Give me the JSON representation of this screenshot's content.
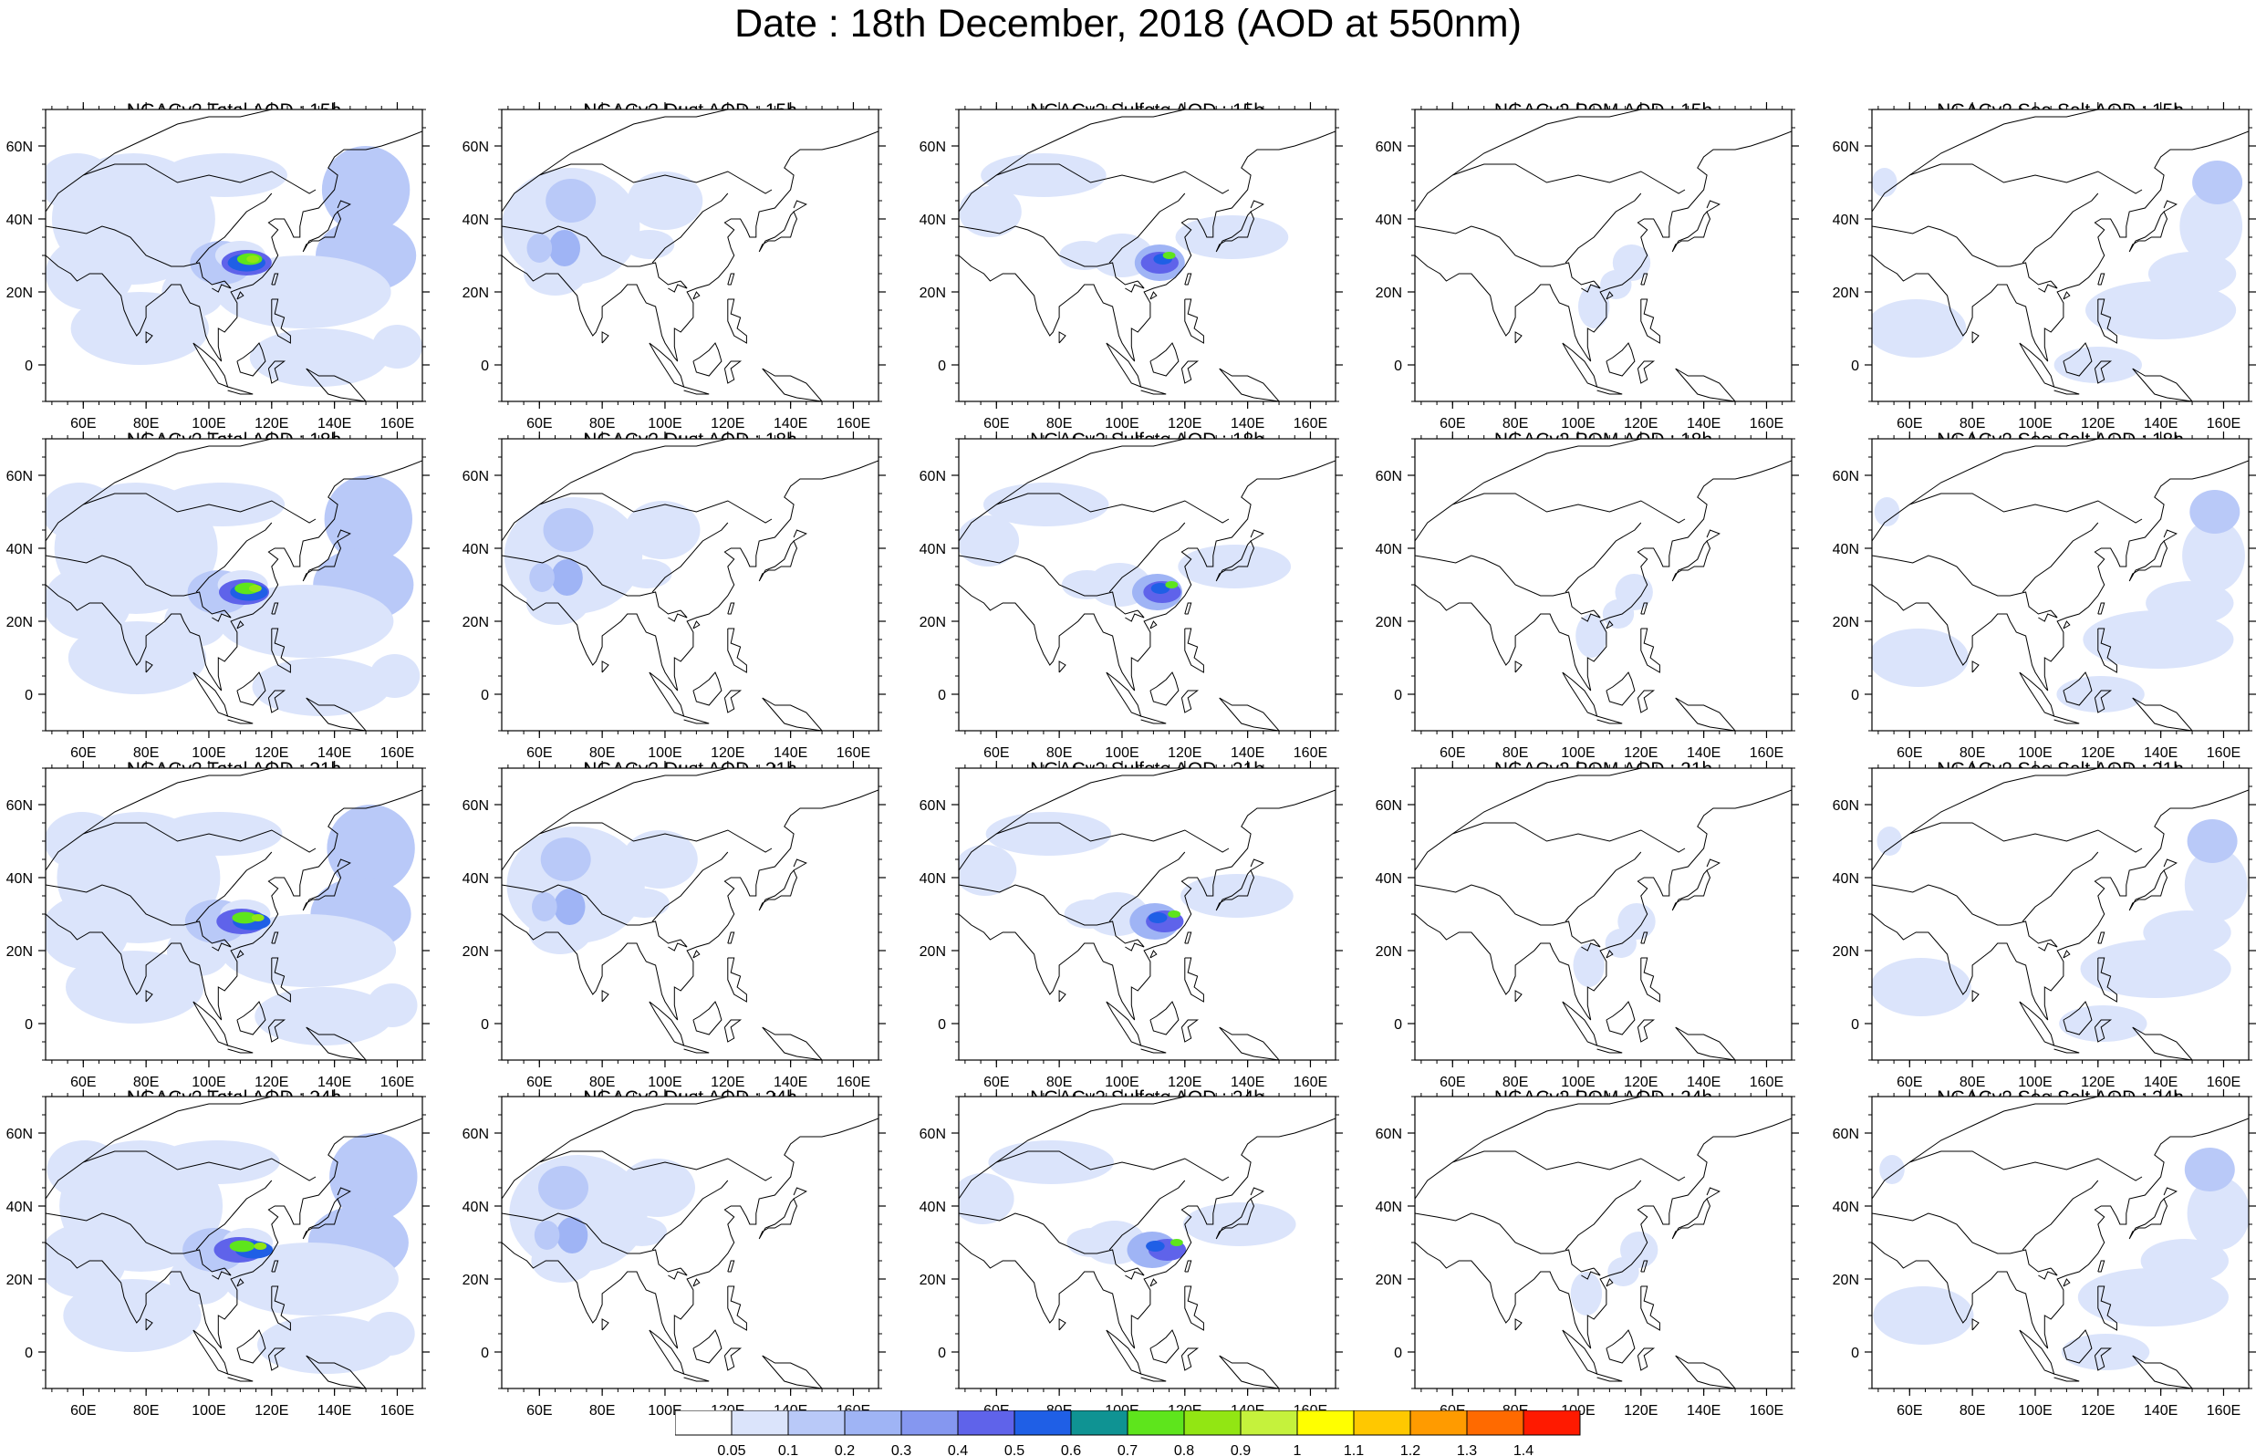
{
  "title": "Date : 18th December, 2018 (AOD at 550nm)",
  "map_extent": {
    "lon_range_E": [
      48,
      168
    ],
    "lat_range_N": [
      -10,
      70
    ]
  },
  "axes": {
    "lon_ticks": [
      "60E",
      "80E",
      "100E",
      "120E",
      "140E",
      "160E"
    ],
    "lat_ticks": [
      "60N",
      "40N",
      "20N",
      "0"
    ]
  },
  "panels": [
    {
      "title": "NGACv2 Total AOD : 15h",
      "species": "total",
      "hour": 15
    },
    {
      "title": "NGACv2 Dust AOD : 15h",
      "species": "dust",
      "hour": 15
    },
    {
      "title": "NGACv2 Sulfate AOD : 15h",
      "species": "sulfate",
      "hour": 15
    },
    {
      "title": "NGACv2 POM AOD : 15h",
      "species": "pom",
      "hour": 15
    },
    {
      "title": "NGACv2 Sea Salt AOD : 15h",
      "species": "seasalt",
      "hour": 15
    },
    {
      "title": "NGACv2 Total AOD : 18h",
      "species": "total",
      "hour": 18
    },
    {
      "title": "NGACv2 Dust AOD : 18h",
      "species": "dust",
      "hour": 18
    },
    {
      "title": "NGACv2 Sulfate AOD : 18h",
      "species": "sulfate",
      "hour": 18
    },
    {
      "title": "NGACv2 POM AOD : 18h",
      "species": "pom",
      "hour": 18
    },
    {
      "title": "NGACv2 Sea Salt AOD : 18h",
      "species": "seasalt",
      "hour": 18
    },
    {
      "title": "NGACv2 Total AOD : 21h",
      "species": "total",
      "hour": 21
    },
    {
      "title": "NGACv2 Dust AOD : 21h",
      "species": "dust",
      "hour": 21
    },
    {
      "title": "NGACv2 Sulfate AOD : 21h",
      "species": "sulfate",
      "hour": 21
    },
    {
      "title": "NGACv2 POM AOD : 21h",
      "species": "pom",
      "hour": 21
    },
    {
      "title": "NGACv2 Sea Salt AOD : 21h",
      "species": "seasalt",
      "hour": 21
    },
    {
      "title": "NGACv2 Total AOD : 24h",
      "species": "total",
      "hour": 24
    },
    {
      "title": "NGACv2 Dust AOD : 24h",
      "species": "dust",
      "hour": 24
    },
    {
      "title": "NGACv2 Sulfate AOD : 24h",
      "species": "sulfate",
      "hour": 24
    },
    {
      "title": "NGACv2 POM AOD : 24h",
      "species": "pom",
      "hour": 24
    },
    {
      "title": "NGACv2 Sea Salt  AOD : 24h",
      "species": "seasalt",
      "hour": 24
    }
  ],
  "colorbar": {
    "labels": [
      "0.05",
      "0.1",
      "0.2",
      "0.3",
      "0.4",
      "0.5",
      "0.6",
      "0.7",
      "0.8",
      "0.9",
      "1",
      "1.1",
      "1.2",
      "1.3",
      "1.4"
    ],
    "colors": [
      "#ffffff",
      "#dbe4fb",
      "#b9c9f8",
      "#9fb4f5",
      "#8597f0",
      "#5f63ea",
      "#1f5fe6",
      "#0f9393",
      "#5ee51c",
      "#92e613",
      "#c5f23c",
      "#ffff00",
      "#ffc800",
      "#ff9b00",
      "#ff6a00",
      "#ff1a00"
    ]
  }
}
